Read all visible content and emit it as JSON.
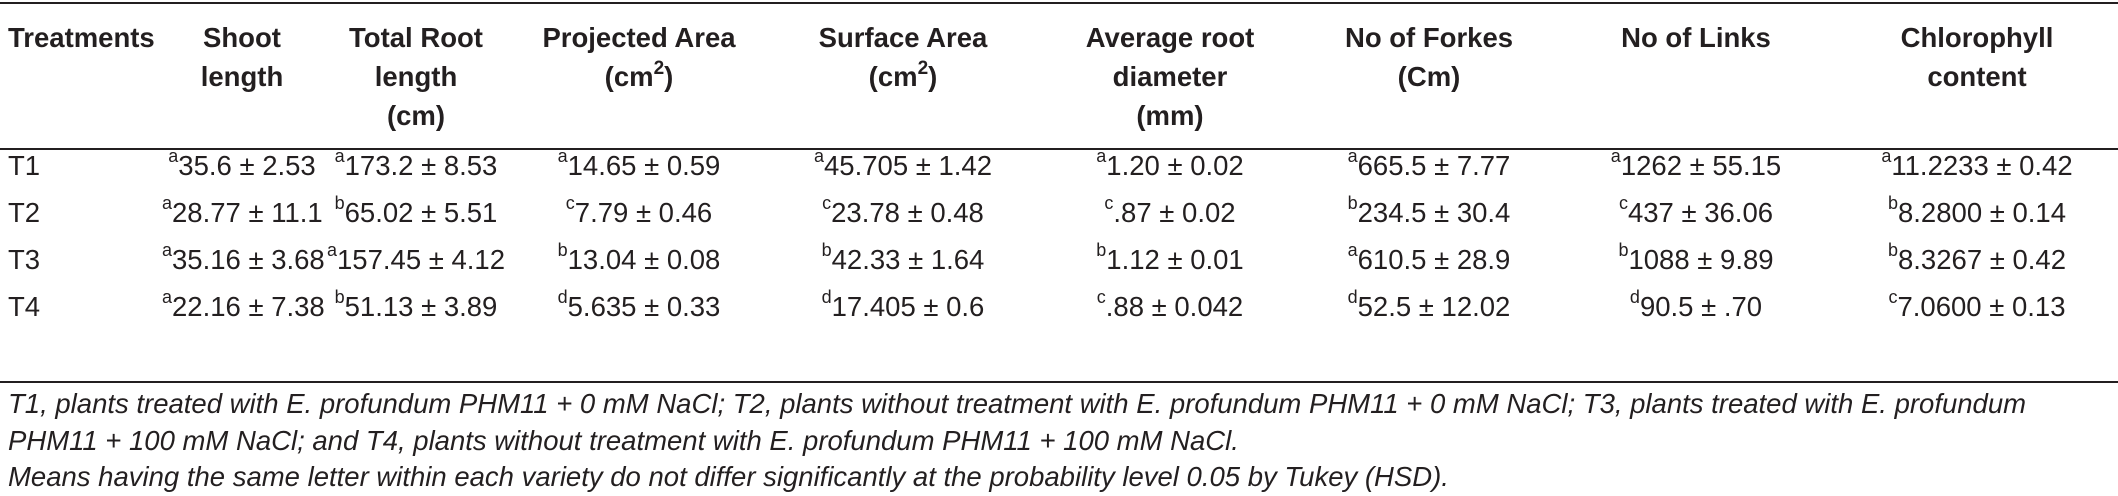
{
  "table": {
    "headers": [
      {
        "line1": "Treatments",
        "line2": "",
        "line3": "",
        "sup": ""
      },
      {
        "line1": "Shoot length",
        "line2": "",
        "line3": "",
        "sup": ""
      },
      {
        "line1": "Total Root length",
        "line2": "(cm)",
        "line3": "",
        "sup": ""
      },
      {
        "line1": "Projected Area",
        "line2": "(cm",
        "line3": "",
        "sup": "2",
        "close": ")"
      },
      {
        "line1": "Surface Area",
        "line2": "(cm",
        "line3": "",
        "sup": "2",
        "close": ")"
      },
      {
        "line1": "Average root",
        "line2": "diameter",
        "line3": "(mm)",
        "sup": ""
      },
      {
        "line1": "No of Forkes",
        "line2": "(Cm)",
        "line3": "",
        "sup": ""
      },
      {
        "line1": "No of Links",
        "line2": "",
        "line3": "",
        "sup": ""
      },
      {
        "line1": "Chlorophyll",
        "line2": "content",
        "line3": "",
        "sup": ""
      }
    ],
    "rows": [
      {
        "treatment": "T1",
        "cells": [
          {
            "sup": "a",
            "val": "35.6 ± 2.53"
          },
          {
            "sup": "a",
            "val": "173.2 ± 8.53"
          },
          {
            "sup": "a",
            "val": "14.65 ± 0.59"
          },
          {
            "sup": "a",
            "val": "45.705 ± 1.42"
          },
          {
            "sup": "a",
            "val": "1.20 ± 0.02"
          },
          {
            "sup": "a",
            "val": "665.5 ± 7.77"
          },
          {
            "sup": "a",
            "val": "1262 ± 55.15"
          },
          {
            "sup": "a",
            "val": "11.2233 ± 0.42"
          }
        ]
      },
      {
        "treatment": "T2",
        "cells": [
          {
            "sup": "a",
            "val": "28.77 ± 11.1"
          },
          {
            "sup": "b",
            "val": "65.02 ± 5.51"
          },
          {
            "sup": "c",
            "val": "7.79 ± 0.46"
          },
          {
            "sup": "c",
            "val": "23.78 ± 0.48"
          },
          {
            "sup": "c",
            "val": ".87 ± 0.02"
          },
          {
            "sup": "b",
            "val": "234.5 ± 30.4"
          },
          {
            "sup": "c",
            "val": "437 ± 36.06"
          },
          {
            "sup": "b",
            "val": "8.2800 ± 0.14"
          }
        ]
      },
      {
        "treatment": "T3",
        "cells": [
          {
            "sup": "a",
            "val": "35.16 ± 3.68"
          },
          {
            "sup": "a",
            "val": "157.45 ± 4.12"
          },
          {
            "sup": "b",
            "val": "13.04 ± 0.08"
          },
          {
            "sup": "b",
            "val": "42.33 ± 1.64"
          },
          {
            "sup": "b",
            "val": "1.12 ± 0.01"
          },
          {
            "sup": "a",
            "val": "610.5 ± 28.9"
          },
          {
            "sup": "b",
            "val": "1088 ± 9.89"
          },
          {
            "sup": "b",
            "val": "8.3267 ± 0.42"
          }
        ]
      },
      {
        "treatment": "T4",
        "cells": [
          {
            "sup": "a",
            "val": "22.16 ± 7.38"
          },
          {
            "sup": "b",
            "val": "51.13 ± 3.89"
          },
          {
            "sup": "d",
            "val": "5.635 ± 0.33"
          },
          {
            "sup": "d",
            "val": "17.405 ± 0.6"
          },
          {
            "sup": "c",
            "val": ".88 ± 0.042"
          },
          {
            "sup": "d",
            "val": "52.5 ± 12.02"
          },
          {
            "sup": "d",
            "val": "90.5 ± .70"
          },
          {
            "sup": "c",
            "val": "7.0600 ± 0.13"
          }
        ]
      }
    ]
  },
  "footnotes": {
    "treatments_note_line1": "T1, plants treated with E. profundum PHM11 + 0 mM NaCl; T2, plants without treatment with E. profundum PHM11 + 0 mM NaCl; T3, plants treated with E. profundum",
    "treatments_note_line2": "PHM11 + 100 mM NaCl; and T4, plants without treatment with E. profundum PHM11 + 100 mM NaCl.",
    "significance_note": "Means having the same letter within each variety do not differ significantly at the probability level 0.05 by Tukey (HSD)."
  }
}
